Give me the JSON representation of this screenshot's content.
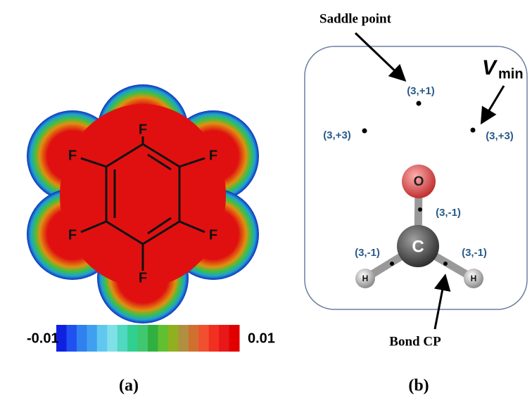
{
  "panel_a": {
    "caption": "(a)",
    "atoms": [
      "F",
      "F",
      "F",
      "F",
      "F",
      "F"
    ],
    "colorbar": {
      "min_label": "-0.01",
      "max_label": "0.01"
    }
  },
  "panel_b": {
    "caption": "(b)",
    "annotations": {
      "saddle": "Saddle point",
      "vmin_symbol": "V",
      "vmin_subscript": "min",
      "bond_cp": "Bond CP"
    },
    "critical_points": [
      "(3,+1)",
      "(3,+3)",
      "(3,+3)",
      "(3,-1)",
      "(3,-1)",
      "(3,-1)"
    ],
    "atoms": [
      "O",
      "C",
      "H",
      "H"
    ]
  }
}
